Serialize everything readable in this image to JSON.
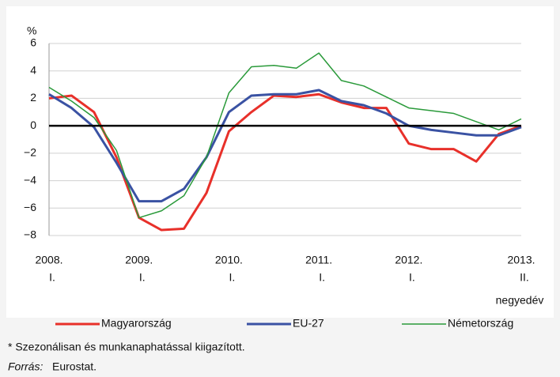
{
  "chart_data": {
    "type": "line",
    "y_unit": "%",
    "categories": [
      {
        "year": "2008.",
        "quarter": "I."
      },
      null,
      null,
      null,
      {
        "year": "2009.",
        "quarter": "I."
      },
      null,
      null,
      null,
      {
        "year": "2010.",
        "quarter": "I."
      },
      null,
      null,
      null,
      {
        "year": "2011.",
        "quarter": "I."
      },
      null,
      null,
      null,
      {
        "year": "2012.",
        "quarter": "I."
      },
      null,
      null,
      null,
      null,
      {
        "year": "2013.",
        "quarter": "II."
      }
    ],
    "x_axis_note": "negyedév",
    "series": [
      {
        "name": "Magyarország",
        "color": "#e8302a",
        "width": 3,
        "values": [
          2.0,
          2.2,
          1.0,
          -2.3,
          -6.7,
          -7.6,
          -7.5,
          -4.9,
          -0.4,
          1.0,
          2.2,
          2.1,
          2.3,
          1.7,
          1.3,
          1.3,
          -1.3,
          -1.7,
          -1.7,
          -2.6,
          -0.6,
          0.0
        ]
      },
      {
        "name": "EU-27",
        "color": "#3a52a3",
        "width": 3,
        "values": [
          2.3,
          1.3,
          -0.1,
          -2.7,
          -5.5,
          -5.5,
          -4.6,
          -2.3,
          1.0,
          2.2,
          2.3,
          2.3,
          2.6,
          1.8,
          1.5,
          0.9,
          0.0,
          -0.3,
          -0.5,
          -0.7,
          -0.7,
          -0.1
        ]
      },
      {
        "name": "Németország",
        "color": "#2a9a3a",
        "width": 1.5,
        "values": [
          2.8,
          1.8,
          0.6,
          -1.8,
          -6.7,
          -6.2,
          -5.1,
          -2.3,
          2.4,
          4.3,
          4.4,
          4.2,
          5.3,
          3.3,
          2.9,
          2.1,
          1.3,
          1.1,
          0.9,
          0.3,
          -0.3,
          0.5
        ]
      }
    ],
    "ylim": [
      -8,
      6
    ],
    "yticks": [
      {
        "value": -8,
        "label": "−8"
      },
      {
        "value": -6,
        "label": "−6"
      },
      {
        "value": -4,
        "label": "−4"
      },
      {
        "value": -2,
        "label": "−2"
      },
      0,
      2,
      4,
      6
    ],
    "grid": true,
    "footnote": "* Szezonálisan és munkanaphatással kiigazított.",
    "source_label": "Forrás:",
    "source": "Eurostat."
  }
}
